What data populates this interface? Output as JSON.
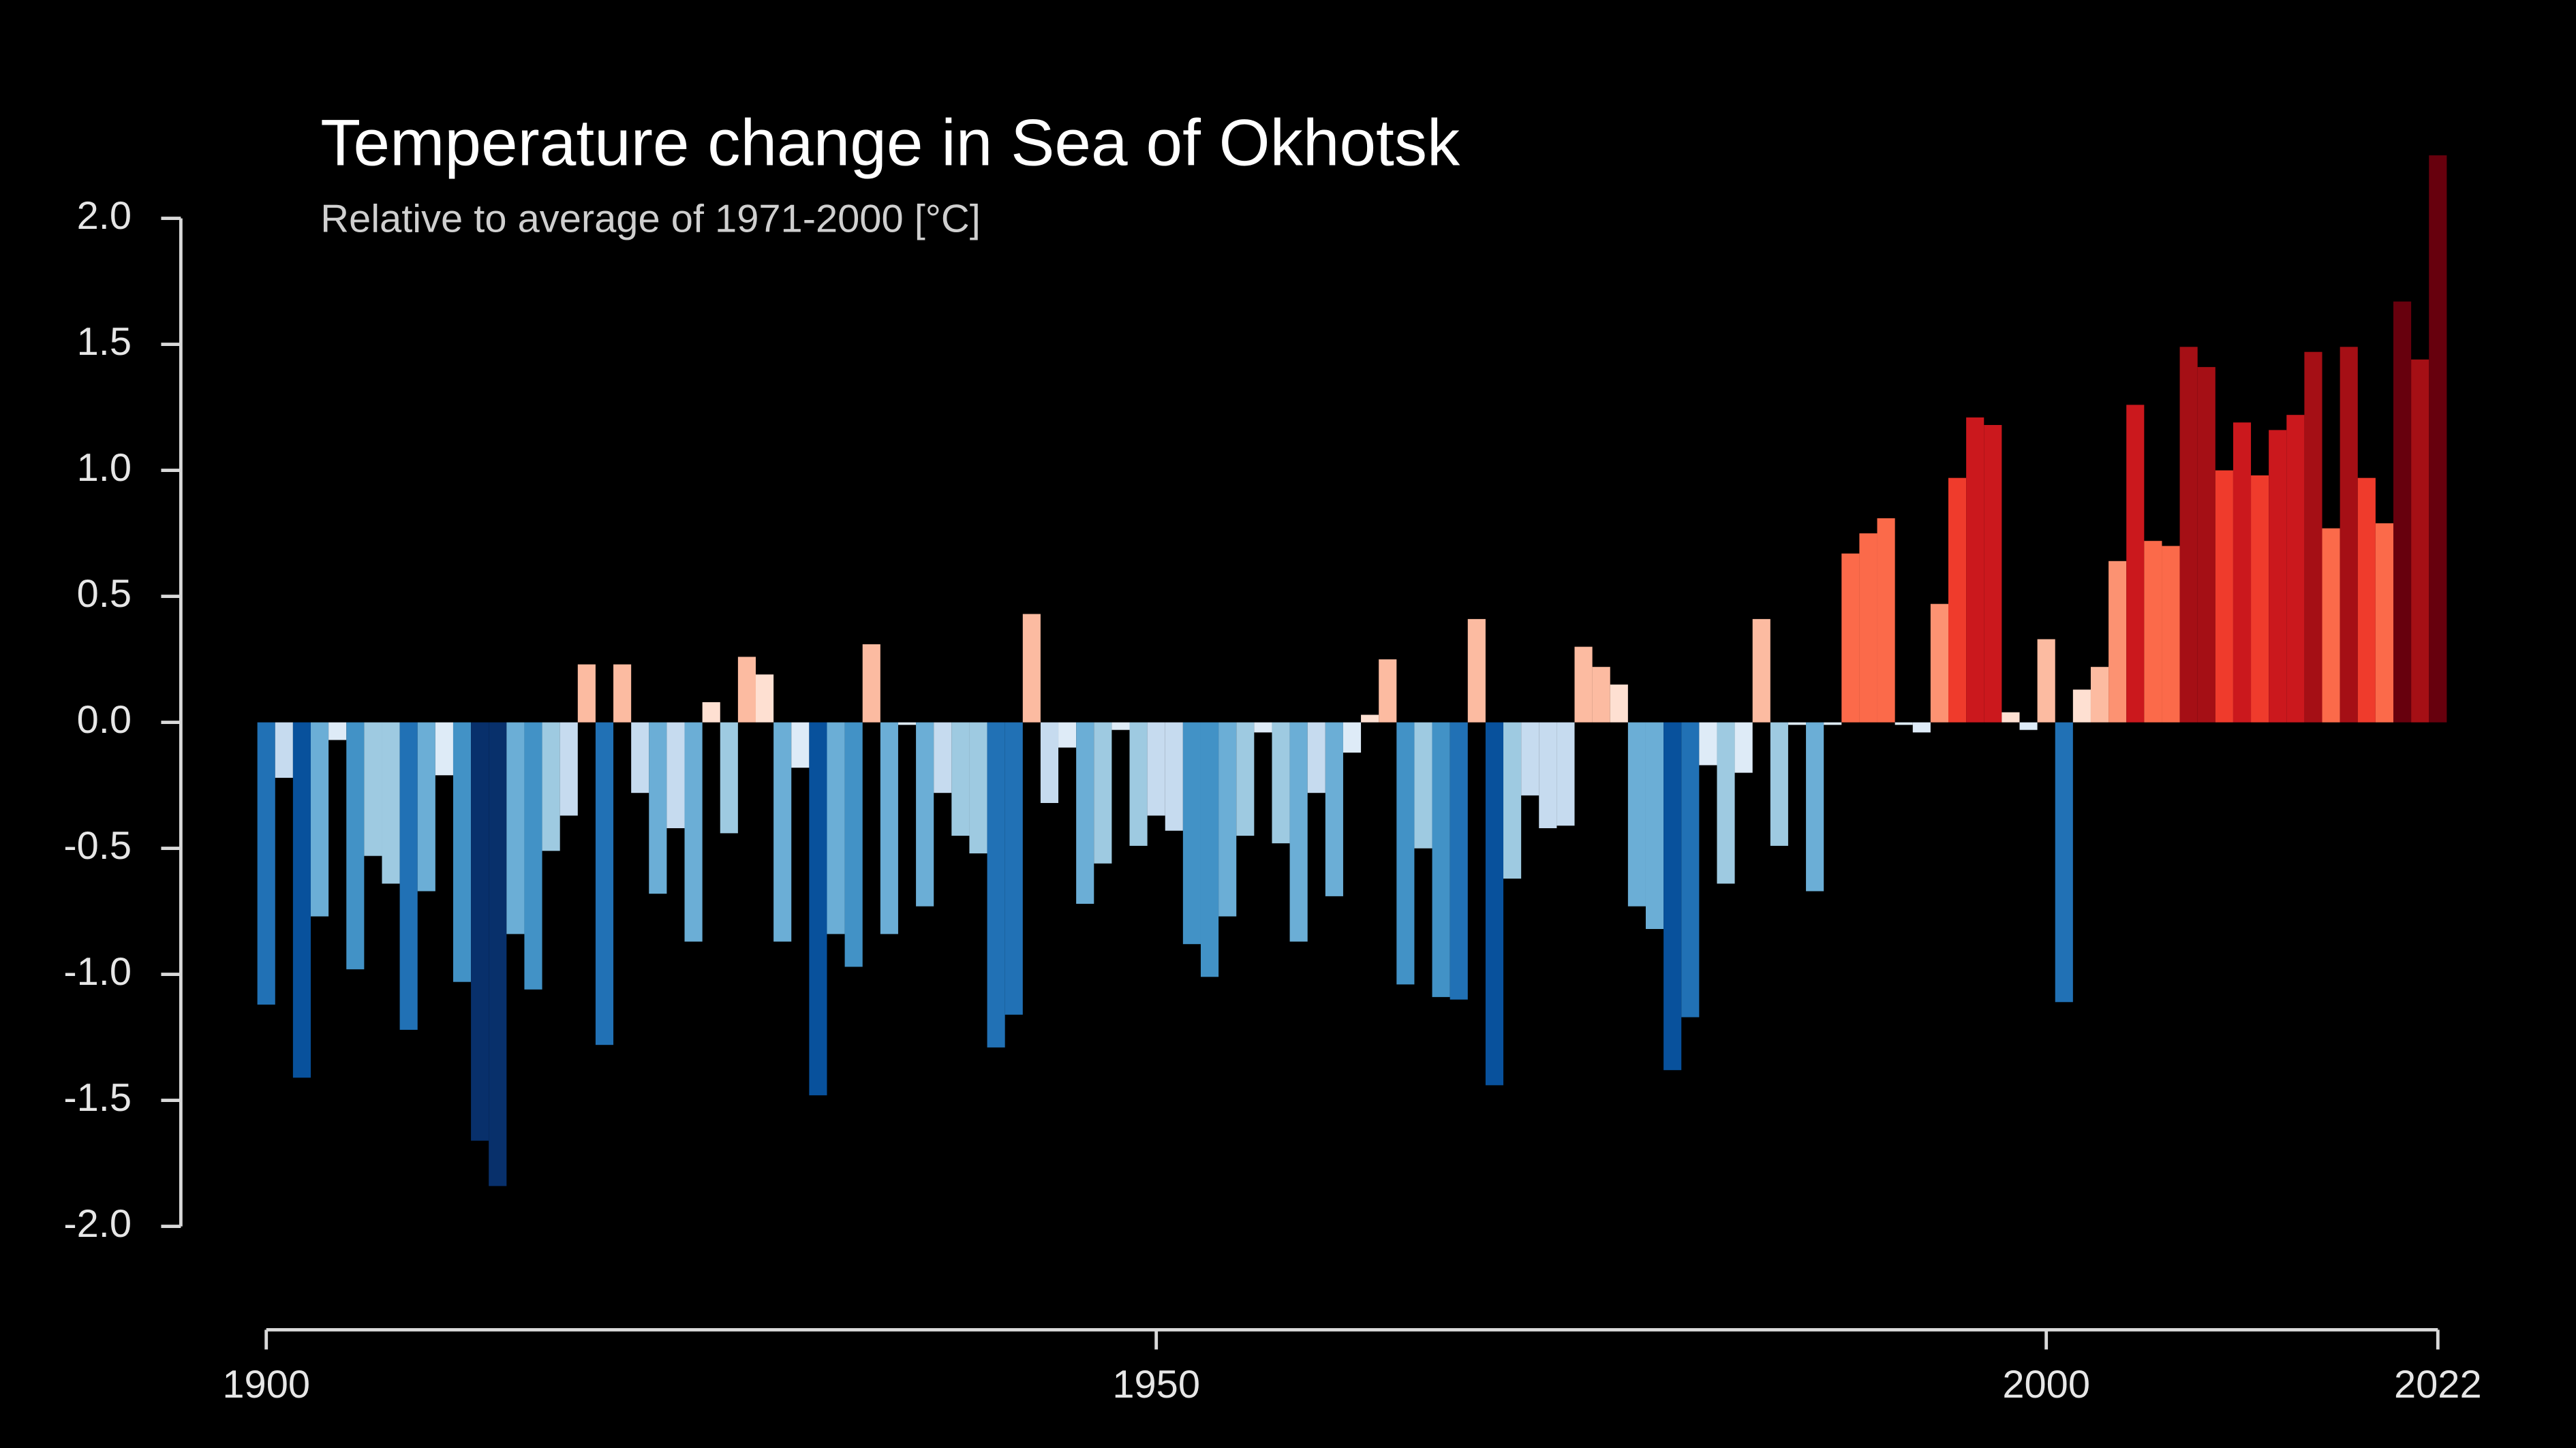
{
  "chart_data": {
    "type": "bar",
    "title": "Temperature change in Sea of Okhotsk",
    "subtitle": "Relative to average of 1971-2000  [°C]",
    "x": [
      1900,
      1901,
      1902,
      1903,
      1904,
      1905,
      1906,
      1907,
      1908,
      1909,
      1910,
      1911,
      1912,
      1913,
      1914,
      1915,
      1916,
      1917,
      1918,
      1919,
      1920,
      1921,
      1922,
      1923,
      1924,
      1925,
      1926,
      1927,
      1928,
      1929,
      1930,
      1931,
      1932,
      1933,
      1934,
      1935,
      1936,
      1937,
      1938,
      1939,
      1940,
      1941,
      1942,
      1943,
      1944,
      1945,
      1946,
      1947,
      1948,
      1949,
      1950,
      1951,
      1952,
      1953,
      1954,
      1955,
      1956,
      1957,
      1958,
      1959,
      1960,
      1961,
      1962,
      1963,
      1964,
      1965,
      1966,
      1967,
      1968,
      1969,
      1970,
      1971,
      1972,
      1973,
      1974,
      1975,
      1976,
      1977,
      1978,
      1979,
      1980,
      1981,
      1982,
      1983,
      1984,
      1985,
      1986,
      1987,
      1988,
      1989,
      1990,
      1991,
      1992,
      1993,
      1994,
      1995,
      1996,
      1997,
      1998,
      1999,
      2000,
      2001,
      2002,
      2003,
      2004,
      2005,
      2006,
      2007,
      2008,
      2009,
      2010,
      2011,
      2012,
      2013,
      2014,
      2015,
      2016,
      2017,
      2018,
      2019,
      2020,
      2021,
      2022
    ],
    "values": [
      -1.12,
      -0.22,
      -1.41,
      -0.77,
      -0.07,
      -0.98,
      -0.53,
      -0.64,
      -1.22,
      -0.67,
      -0.21,
      -1.03,
      -1.66,
      -1.84,
      -0.84,
      -1.06,
      -0.51,
      -0.37,
      0.23,
      -1.28,
      0.23,
      -0.28,
      -0.68,
      -0.42,
      -0.87,
      0.08,
      -0.44,
      0.26,
      0.19,
      -0.87,
      -0.18,
      -1.48,
      -0.84,
      -0.97,
      0.31,
      -0.84,
      -0.01,
      -0.73,
      -0.28,
      -0.45,
      -0.52,
      -1.29,
      -1.16,
      0.43,
      -0.32,
      -0.1,
      -0.72,
      -0.56,
      -0.03,
      -0.49,
      -0.37,
      -0.43,
      -0.88,
      -1.01,
      -0.77,
      -0.45,
      -0.04,
      -0.48,
      -0.87,
      -0.28,
      -0.69,
      -0.12,
      0.03,
      0.25,
      -1.04,
      -0.5,
      -1.09,
      -1.1,
      0.41,
      -1.44,
      -0.62,
      -0.29,
      -0.42,
      -0.41,
      0.3,
      0.22,
      0.15,
      -0.73,
      -0.82,
      -1.38,
      -1.17,
      -0.17,
      -0.64,
      -0.2,
      0.41,
      -0.49,
      -0.01,
      -0.67,
      -0.01,
      0.67,
      0.75,
      0.81,
      -0.01,
      -0.04,
      0.47,
      0.97,
      1.21,
      1.18,
      0.04,
      -0.03,
      0.33,
      -1.11,
      0.13,
      0.22,
      0.64,
      1.26,
      0.72,
      0.7,
      1.49,
      1.41,
      1.0,
      1.19,
      0.98,
      1.16,
      1.22,
      1.47,
      0.77,
      1.49,
      0.97,
      0.79,
      1.67,
      1.44,
      2.25
    ],
    "xlim": [
      1900,
      2022
    ],
    "xticks": [
      1900,
      1950,
      2000,
      2022
    ],
    "ylim": [
      -2.0,
      2.0
    ],
    "yticks": [
      {
        "value": 2.0,
        "label": "2.0"
      },
      {
        "value": 1.5,
        "label": "1.5"
      },
      {
        "value": 1.0,
        "label": "1.0"
      },
      {
        "value": 0.5,
        "label": "0.5"
      },
      {
        "value": 0.0,
        "label": "0.0"
      },
      {
        "value": -0.5,
        "label": "-0.5"
      },
      {
        "value": -1.0,
        "label": "-1.0"
      },
      {
        "value": -1.5,
        "label": "-1.5"
      },
      {
        "value": -2.0,
        "label": "-2.0"
      }
    ]
  }
}
